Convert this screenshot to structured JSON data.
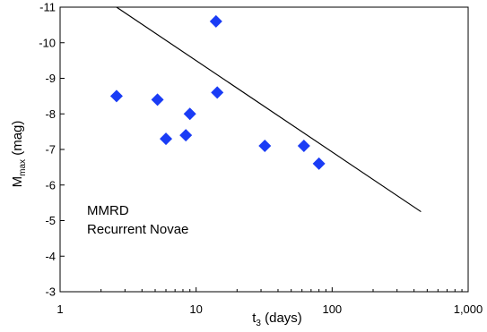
{
  "chart_data": {
    "type": "scatter",
    "x_axis": {
      "scale": "log",
      "range": [
        1,
        1000
      ],
      "ticks": [
        {
          "value": 1,
          "label": "1"
        },
        {
          "value": 10,
          "label": "10"
        },
        {
          "value": 100,
          "label": "100"
        },
        {
          "value": 1000,
          "label": "1,000"
        }
      ],
      "label_main": "t",
      "label_sub": "3",
      "label_rest": " (days)"
    },
    "y_axis": {
      "scale": "linear",
      "range": [
        -3,
        -11
      ],
      "ticks": [
        {
          "value": -3,
          "label": "-3"
        },
        {
          "value": -4,
          "label": "-4"
        },
        {
          "value": -5,
          "label": "-5"
        },
        {
          "value": -6,
          "label": "-6"
        },
        {
          "value": -7,
          "label": "-7"
        },
        {
          "value": -8,
          "label": "-8"
        },
        {
          "value": -9,
          "label": "-9"
        },
        {
          "value": -10,
          "label": "-10"
        },
        {
          "value": -11,
          "label": "-11"
        }
      ],
      "label_main": "M",
      "label_sub": "max",
      "label_rest": " (mag)"
    },
    "grid": false,
    "series": [
      {
        "marker": "diamond",
        "color": "#1a3cf5",
        "points": [
          {
            "x": 2.6,
            "y": -8.5
          },
          {
            "x": 5.2,
            "y": -8.4
          },
          {
            "x": 6.0,
            "y": -7.3
          },
          {
            "x": 8.4,
            "y": -7.4
          },
          {
            "x": 9.0,
            "y": -8.0
          },
          {
            "x": 14.0,
            "y": -10.6
          },
          {
            "x": 14.3,
            "y": -8.6
          },
          {
            "x": 32.0,
            "y": -7.1
          },
          {
            "x": 62.0,
            "y": -7.1
          },
          {
            "x": 80.0,
            "y": -6.6
          }
        ]
      }
    ],
    "relation_line": {
      "color": "#000000",
      "points": [
        {
          "x": 2.6,
          "y": -11
        },
        {
          "x": 450,
          "y": -5.25
        }
      ]
    },
    "annotation": [
      "MMRD",
      "Recurrent Novae"
    ]
  }
}
